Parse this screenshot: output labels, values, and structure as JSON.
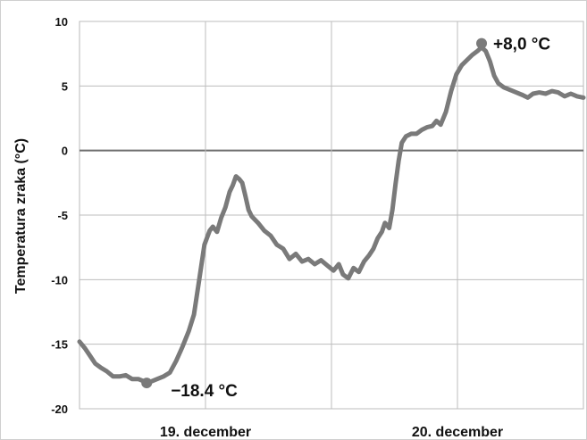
{
  "chart_data": {
    "type": "line",
    "ylabel": "Temperatura zraka (°C)",
    "ylim": [
      -20,
      10
    ],
    "yticks": [
      10,
      5,
      0,
      -5,
      -10,
      -15,
      -20
    ],
    "categories": [
      "19. december",
      "20. december"
    ],
    "grid": true,
    "line_color": "#7a7a7a",
    "series": [
      {
        "values": [
          [
            0.0,
            -14.8
          ],
          [
            0.25,
            -15.3
          ],
          [
            0.5,
            -15.9
          ],
          [
            0.75,
            -16.5
          ],
          [
            1.0,
            -16.8
          ],
          [
            1.3,
            -17.1
          ],
          [
            1.6,
            -17.5
          ],
          [
            1.9,
            -17.5
          ],
          [
            2.2,
            -17.4
          ],
          [
            2.5,
            -17.7
          ],
          [
            2.8,
            -17.7
          ],
          [
            3.1,
            -17.9
          ],
          [
            3.4,
            -17.9
          ],
          [
            3.7,
            -17.7
          ],
          [
            4.0,
            -17.5
          ],
          [
            4.3,
            -17.2
          ],
          [
            4.6,
            -16.3
          ],
          [
            4.9,
            -15.2
          ],
          [
            5.2,
            -14.0
          ],
          [
            5.45,
            -12.7
          ],
          [
            5.7,
            -10.0
          ],
          [
            5.95,
            -7.3
          ],
          [
            6.2,
            -6.2
          ],
          [
            6.35,
            -5.9
          ],
          [
            6.55,
            -6.3
          ],
          [
            6.75,
            -5.2
          ],
          [
            6.95,
            -4.4
          ],
          [
            7.15,
            -3.2
          ],
          [
            7.3,
            -2.7
          ],
          [
            7.45,
            -2.0
          ],
          [
            7.6,
            -2.2
          ],
          [
            7.75,
            -2.5
          ],
          [
            7.9,
            -3.5
          ],
          [
            8.05,
            -4.6
          ],
          [
            8.2,
            -5.1
          ],
          [
            8.5,
            -5.6
          ],
          [
            8.8,
            -6.2
          ],
          [
            9.1,
            -6.6
          ],
          [
            9.4,
            -7.3
          ],
          [
            9.7,
            -7.6
          ],
          [
            10.0,
            -8.4
          ],
          [
            10.3,
            -8.0
          ],
          [
            10.6,
            -8.6
          ],
          [
            10.9,
            -8.4
          ],
          [
            11.2,
            -8.8
          ],
          [
            11.5,
            -8.5
          ],
          [
            11.8,
            -8.9
          ],
          [
            12.1,
            -9.3
          ],
          [
            12.35,
            -8.8
          ],
          [
            12.55,
            -9.6
          ],
          [
            12.8,
            -9.9
          ],
          [
            13.05,
            -9.1
          ],
          [
            13.3,
            -9.4
          ],
          [
            13.55,
            -8.6
          ],
          [
            13.8,
            -8.1
          ],
          [
            14.0,
            -7.6
          ],
          [
            14.2,
            -6.8
          ],
          [
            14.4,
            -6.3
          ],
          [
            14.55,
            -5.6
          ],
          [
            14.75,
            -6.0
          ],
          [
            14.9,
            -4.6
          ],
          [
            15.05,
            -2.6
          ],
          [
            15.2,
            -0.8
          ],
          [
            15.35,
            0.6
          ],
          [
            15.55,
            1.1
          ],
          [
            15.8,
            1.3
          ],
          [
            16.05,
            1.3
          ],
          [
            16.3,
            1.6
          ],
          [
            16.55,
            1.8
          ],
          [
            16.8,
            1.9
          ],
          [
            17.0,
            2.3
          ],
          [
            17.2,
            2.0
          ],
          [
            17.45,
            3.0
          ],
          [
            17.7,
            4.6
          ],
          [
            17.95,
            5.9
          ],
          [
            18.2,
            6.6
          ],
          [
            18.45,
            7.0
          ],
          [
            18.7,
            7.4
          ],
          [
            18.95,
            7.7
          ],
          [
            19.15,
            8.0
          ],
          [
            19.35,
            7.7
          ],
          [
            19.55,
            6.9
          ],
          [
            19.75,
            5.8
          ],
          [
            19.95,
            5.2
          ],
          [
            20.2,
            4.9
          ],
          [
            20.5,
            4.7
          ],
          [
            20.8,
            4.5
          ],
          [
            21.1,
            4.3
          ],
          [
            21.35,
            4.1
          ],
          [
            21.6,
            4.4
          ],
          [
            21.9,
            4.5
          ],
          [
            22.2,
            4.4
          ],
          [
            22.5,
            4.6
          ],
          [
            22.8,
            4.5
          ],
          [
            23.1,
            4.2
          ],
          [
            23.4,
            4.4
          ],
          [
            23.7,
            4.2
          ],
          [
            24.0,
            4.1
          ]
        ]
      }
    ],
    "annotations": [
      {
        "text": "−18.4 °C",
        "x": 3.2,
        "y": -18.0,
        "marker": true
      },
      {
        "text": "+8,0 °C",
        "x": 19.15,
        "y": 8.3,
        "marker": true
      }
    ]
  }
}
